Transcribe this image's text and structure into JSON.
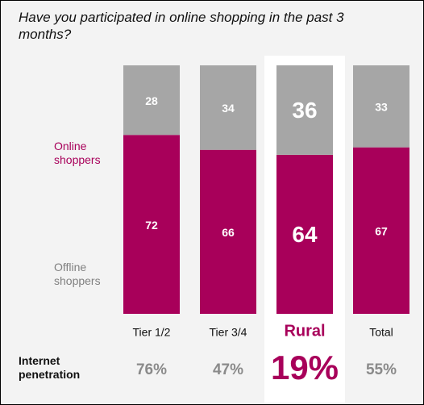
{
  "chart_data": {
    "type": "stacked_bar",
    "title": "Have you participated in online shopping in the past 3 months?",
    "categories": [
      "Tier 1/2",
      "Tier 3/4",
      "Rural",
      "Total"
    ],
    "series": [
      {
        "name": "Online shoppers",
        "color": "#a8005a",
        "values": [
          72,
          66,
          64,
          67
        ]
      },
      {
        "name": "Offline shoppers",
        "color": "#a6a6a6",
        "values": [
          28,
          34,
          36,
          33
        ]
      }
    ],
    "ylim": [
      0,
      100
    ],
    "highlight_index": 2,
    "row_label": "Internet penetration",
    "row_values": [
      "76%",
      "47%",
      "19%",
      "55%"
    ]
  }
}
